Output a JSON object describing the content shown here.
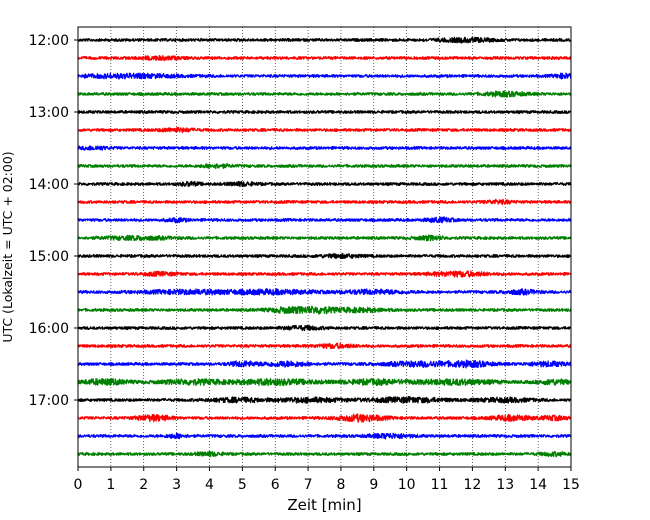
{
  "chart_data": {
    "type": "line",
    "xlabel": "Zeit  [min]",
    "ylabel": "UTC (Lokalzeit = UTC + 02:00)",
    "x_ticks": [
      "0",
      "1",
      "2",
      "3",
      "4",
      "5",
      "6",
      "7",
      "8",
      "9",
      "10",
      "11",
      "12",
      "13",
      "14",
      "15"
    ],
    "xlim": [
      0,
      15
    ],
    "y_ticks": [
      "12:00",
      "13:00",
      "14:00",
      "15:00",
      "16:00",
      "17:00"
    ],
    "y_start": "12:00",
    "y_end": "17:45",
    "row_interval_minutes": 15,
    "grid": "vertical dotted at each minute",
    "trace_colors": [
      "#000000",
      "#ff0000",
      "#0000ff",
      "#008000"
    ],
    "traces": [
      {
        "time": "12:00",
        "color": "#000000",
        "bursts": [
          [
            11.8,
            0.8,
            1.6
          ]
        ]
      },
      {
        "time": "12:15",
        "color": "#ff0000",
        "bursts": [
          [
            2.5,
            0.6,
            1.3
          ]
        ]
      },
      {
        "time": "12:30",
        "color": "#0000ff",
        "bursts": [
          [
            1.5,
            1.5,
            1.6
          ],
          [
            14.8,
            0.3,
            1.8
          ]
        ]
      },
      {
        "time": "12:45",
        "color": "#008000",
        "bursts": [
          [
            13.0,
            0.6,
            1.8
          ]
        ]
      },
      {
        "time": "13:00",
        "color": "#000000",
        "bursts": []
      },
      {
        "time": "13:15",
        "color": "#ff0000",
        "bursts": [
          [
            3.0,
            0.5,
            1.4
          ]
        ]
      },
      {
        "time": "13:30",
        "color": "#0000ff",
        "bursts": [
          [
            0.5,
            0.4,
            1.3
          ]
        ]
      },
      {
        "time": "13:45",
        "color": "#008000",
        "bursts": [
          [
            4.2,
            0.4,
            1.4
          ]
        ]
      },
      {
        "time": "14:00",
        "color": "#000000",
        "bursts": [
          [
            3.4,
            0.3,
            1.5
          ],
          [
            5.0,
            0.4,
            1.5
          ]
        ]
      },
      {
        "time": "14:15",
        "color": "#ff0000",
        "bursts": [
          [
            12.8,
            0.4,
            1.3
          ]
        ]
      },
      {
        "time": "14:30",
        "color": "#0000ff",
        "bursts": [
          [
            3.0,
            0.3,
            1.4
          ],
          [
            11.0,
            0.4,
            1.8
          ]
        ]
      },
      {
        "time": "14:45",
        "color": "#008000",
        "bursts": [
          [
            1.8,
            1.0,
            1.4
          ],
          [
            10.7,
            0.4,
            1.6
          ]
        ]
      },
      {
        "time": "15:00",
        "color": "#000000",
        "bursts": [
          [
            8.0,
            0.6,
            1.3
          ]
        ]
      },
      {
        "time": "15:15",
        "color": "#ff0000",
        "bursts": [
          [
            11.6,
            0.8,
            2.0
          ],
          [
            2.5,
            0.5,
            1.3
          ]
        ]
      },
      {
        "time": "15:30",
        "color": "#0000ff",
        "bursts": [
          [
            3.5,
            1.5,
            1.6
          ],
          [
            6.0,
            1.2,
            1.7
          ],
          [
            9.0,
            1.0,
            1.6
          ],
          [
            13.5,
            0.5,
            1.7
          ]
        ]
      },
      {
        "time": "15:45",
        "color": "#008000",
        "bursts": [
          [
            6.5,
            0.7,
            2.4
          ],
          [
            7.4,
            0.4,
            2.2
          ],
          [
            8.5,
            0.8,
            1.6
          ]
        ]
      },
      {
        "time": "16:00",
        "color": "#000000",
        "bursts": [
          [
            6.8,
            0.6,
            1.4
          ]
        ]
      },
      {
        "time": "16:15",
        "color": "#ff0000",
        "bursts": [
          [
            7.8,
            0.6,
            1.5
          ]
        ]
      },
      {
        "time": "16:30",
        "color": "#0000ff",
        "bursts": [
          [
            5.0,
            0.4,
            2.0
          ],
          [
            6.3,
            0.7,
            2.0
          ],
          [
            10.5,
            1.2,
            2.0
          ],
          [
            12.0,
            0.6,
            2.0
          ],
          [
            14.3,
            0.6,
            1.8
          ]
        ]
      },
      {
        "time": "16:45",
        "color": "#008000",
        "bursts": [
          [
            0.8,
            0.7,
            2.4
          ],
          [
            3.5,
            1.0,
            2.0
          ],
          [
            6.0,
            1.2,
            2.4
          ],
          [
            9.0,
            1.0,
            2.0
          ],
          [
            11.5,
            1.2,
            2.2
          ],
          [
            14.5,
            0.5,
            2.0
          ]
        ]
      },
      {
        "time": "17:00",
        "color": "#000000",
        "bursts": [
          [
            4.8,
            0.8,
            1.6
          ],
          [
            7.0,
            1.0,
            1.8
          ],
          [
            10.0,
            1.2,
            2.0
          ],
          [
            13.0,
            0.8,
            1.6
          ]
        ]
      },
      {
        "time": "17:15",
        "color": "#ff0000",
        "bursts": [
          [
            2.3,
            0.5,
            2.4
          ],
          [
            8.6,
            0.7,
            2.8
          ],
          [
            13.2,
            0.6,
            2.2
          ],
          [
            14.5,
            0.4,
            1.6
          ]
        ]
      },
      {
        "time": "17:30",
        "color": "#0000ff",
        "bursts": [
          [
            3.0,
            0.3,
            1.6
          ],
          [
            9.5,
            0.6,
            1.8
          ]
        ]
      },
      {
        "time": "17:45",
        "color": "#008000",
        "bursts": [
          [
            4.0,
            0.4,
            1.4
          ],
          [
            14.5,
            0.4,
            1.3
          ]
        ]
      }
    ]
  }
}
